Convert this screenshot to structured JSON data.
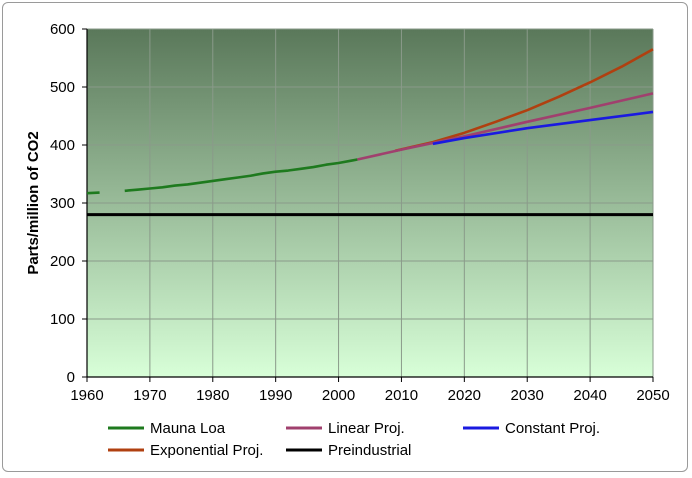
{
  "chart_data": {
    "type": "line",
    "title": "",
    "xlabel": "",
    "ylabel": "Parts/million of CO2",
    "xlim": [
      1960,
      2050
    ],
    "ylim": [
      0,
      600
    ],
    "x_ticks": [
      1960,
      1970,
      1980,
      1990,
      2000,
      2010,
      2020,
      2030,
      2040,
      2050
    ],
    "y_ticks": [
      0,
      100,
      200,
      300,
      400,
      500,
      600
    ],
    "grid": true,
    "legend_position": "bottom",
    "background_gradient": [
      "#5a785a",
      "#d8ffd8"
    ],
    "series": [
      {
        "name": "Mauna Loa",
        "color": "#1e7a1e",
        "x": [
          1960,
          1962,
          1966,
          1968,
          1970,
          1972,
          1974,
          1976,
          1978,
          1980,
          1982,
          1984,
          1986,
          1988,
          1990,
          1992,
          1994,
          1996,
          1998,
          2000,
          2002,
          2003
        ],
        "y": [
          317,
          318,
          321,
          323,
          325,
          327,
          330,
          332,
          335,
          338,
          341,
          344,
          347,
          351,
          354,
          356,
          359,
          362,
          366,
          369,
          373,
          375
        ],
        "gap": [
          1962,
          1966
        ]
      },
      {
        "name": "Linear Proj.",
        "color": "#a0406e",
        "x": [
          2003,
          2010,
          2020,
          2030,
          2040,
          2050
        ],
        "y": [
          375,
          392,
          415,
          440,
          464,
          489
        ]
      },
      {
        "name": "Constant Proj.",
        "color": "#1a1ae0",
        "x": [
          2015,
          2020,
          2030,
          2040,
          2050
        ],
        "y": [
          402,
          412,
          429,
          443,
          457
        ]
      },
      {
        "name": "Exponential Proj.",
        "color": "#b04010",
        "x": [
          2009,
          2015,
          2020,
          2025,
          2030,
          2035,
          2040,
          2045,
          2050
        ],
        "y": [
          390,
          405,
          421,
          440,
          460,
          483,
          508,
          535,
          565
        ]
      },
      {
        "name": "Preindustrial",
        "color": "#000000",
        "x": [
          1960,
          2050
        ],
        "y": [
          280,
          280
        ]
      }
    ]
  }
}
